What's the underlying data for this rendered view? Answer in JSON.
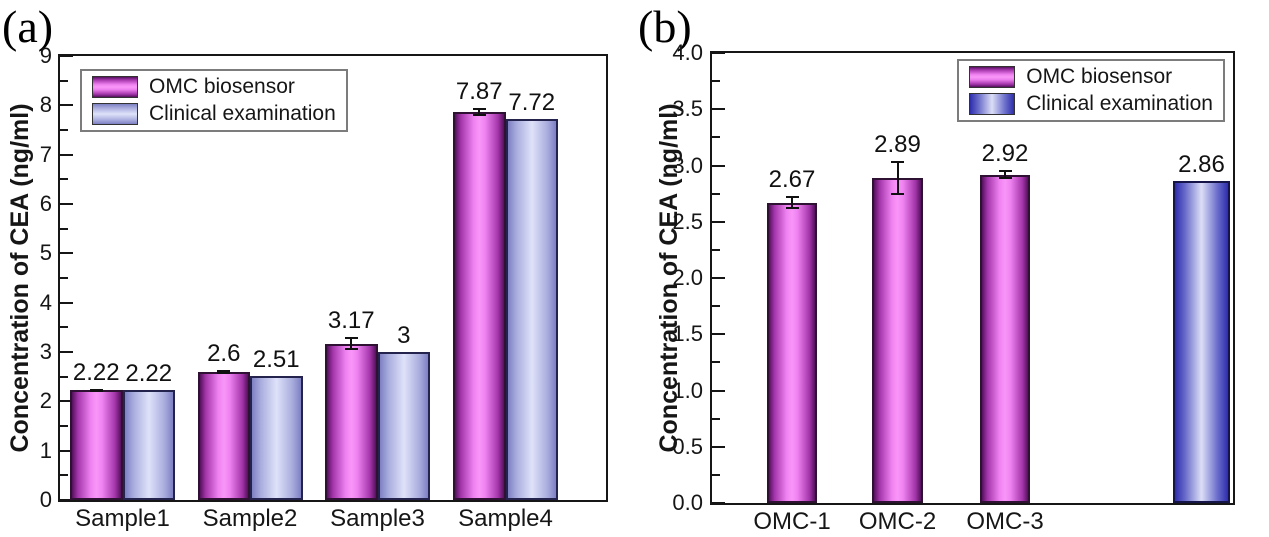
{
  "figure": {
    "background": "#ffffff"
  },
  "colors": {
    "axis": "#161616",
    "omc_bar_center": "#f996f9",
    "omc_bar_edge": "#54105c",
    "clinical_a_bar_center": "#dfe2f9",
    "clinical_a_bar_edge": "#7d80c3",
    "clinical_b_bar_center": "#dcdef6",
    "clinical_b_bar_edge": "#2d2dac",
    "error_bar": "#101010"
  },
  "chart_data": [
    {
      "type": "bar",
      "panel_label": "(a)",
      "ylabel": "Concentration of CEA (ng/ml)",
      "xlabel": "",
      "ylim": [
        0,
        9
      ],
      "ytick_step": 1,
      "ytick_labels": [
        "0",
        "1",
        "2",
        "3",
        "4",
        "5",
        "6",
        "7",
        "8",
        "9"
      ],
      "minor_ticks_between_majors": 1,
      "grid": false,
      "legend_position": "top-left",
      "categories": [
        "Sample1",
        "Sample2",
        "Sample3",
        "Sample4"
      ],
      "series": [
        {
          "name": "OMC biosensor",
          "style": "omc",
          "values": [
            2.22,
            2.6,
            3.17,
            7.87
          ],
          "errors": [
            0.03,
            0.04,
            0.13,
            0.08
          ],
          "value_labels": [
            "2.22",
            "2.6",
            "3.17",
            "7.87"
          ]
        },
        {
          "name": "Clinical examination",
          "style": "clinical_a",
          "values": [
            2.22,
            2.51,
            3.0,
            7.72
          ],
          "errors": [
            0,
            0,
            0,
            0
          ],
          "value_labels": [
            "2.22",
            "2.51",
            "3",
            "7.72"
          ]
        }
      ]
    },
    {
      "type": "bar",
      "panel_label": "(b)",
      "ylabel": "Concentration of CEA (ng/ml)",
      "xlabel": "",
      "ylim": [
        0,
        4
      ],
      "ytick_step": 0.5,
      "ytick_labels": [
        "0.0",
        "0.5",
        "1.0",
        "1.5",
        "2.0",
        "2.5",
        "3.0",
        "3.5",
        "4.0"
      ],
      "minor_ticks_between_majors": 1,
      "grid": false,
      "legend_position": "top-right",
      "legend": {
        "entries": [
          "OMC biosensor",
          "Clinical examination"
        ]
      },
      "bars": [
        {
          "category": "OMC-1",
          "value": 2.67,
          "error": 0.06,
          "style": "omc",
          "value_label": "2.67"
        },
        {
          "category": "OMC-2",
          "value": 2.89,
          "error": 0.15,
          "style": "omc",
          "value_label": "2.89"
        },
        {
          "category": "OMC-3",
          "value": 2.92,
          "error": 0.04,
          "style": "omc",
          "value_label": "2.92"
        },
        {
          "category": "",
          "value": 2.86,
          "error": 0,
          "style": "clinical_b",
          "value_label": "2.86"
        }
      ]
    }
  ]
}
